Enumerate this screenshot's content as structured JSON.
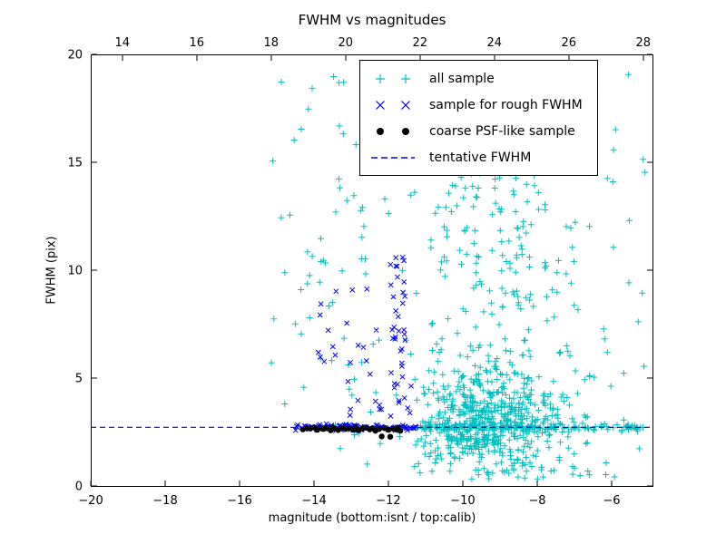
{
  "figure": {
    "title": "FWHM vs magnitudes",
    "xlabel": "magnitude (bottom:isnt / top:calib)",
    "ylabel": "FWHM (pix)"
  },
  "chart_data": {
    "type": "scatter",
    "title": "FWHM vs magnitudes",
    "xlabel": "magnitude (bottom:isnt / top:calib)",
    "ylabel": "FWHM (pix)",
    "xlim": [
      -20,
      -4.9
    ],
    "ylim": [
      0,
      20
    ],
    "grid": false,
    "legend_position": "upper right",
    "x_ticks_bottom": [
      {
        "v": -20,
        "label": "−20"
      },
      {
        "v": -18,
        "label": "−18"
      },
      {
        "v": -16,
        "label": "−16"
      },
      {
        "v": -14,
        "label": "−14"
      },
      {
        "v": -12,
        "label": "−12"
      },
      {
        "v": -10,
        "label": "−10"
      },
      {
        "v": -8,
        "label": "−8"
      },
      {
        "v": -6,
        "label": "−6"
      }
    ],
    "x_ticks_top": [
      {
        "v": 14,
        "label": "14"
      },
      {
        "v": 16,
        "label": "16"
      },
      {
        "v": 18,
        "label": "18"
      },
      {
        "v": 20,
        "label": "20"
      },
      {
        "v": 22,
        "label": "22"
      },
      {
        "v": 24,
        "label": "24"
      },
      {
        "v": 26,
        "label": "26"
      },
      {
        "v": 28,
        "label": "28"
      }
    ],
    "top_axis_offset": 33.15,
    "y_ticks": [
      {
        "v": 0,
        "label": "0"
      },
      {
        "v": 5,
        "label": "5"
      },
      {
        "v": 10,
        "label": "10"
      },
      {
        "v": 15,
        "label": "15"
      },
      {
        "v": 20,
        "label": "20"
      }
    ],
    "tentative_fwhm_y": 2.72,
    "random_seed": 42,
    "series": [
      {
        "name": "all sample",
        "marker": "plus",
        "color": "#00bfbf",
        "clusters": [
          {
            "count": 500,
            "x": {
              "type": "normal",
              "mean": -9.3,
              "sd": 0.95,
              "min": -11.3,
              "max": -5.1
            },
            "y": {
              "type": "normal",
              "mean": 3.1,
              "sd": 1.1,
              "min": 0.6,
              "max": 6.5
            }
          },
          {
            "count": 130,
            "x": {
              "type": "normal",
              "mean": -9.2,
              "sd": 1.05,
              "min": -11.4,
              "max": -5.2
            },
            "y": {
              "type": "uniform",
              "min": 5.5,
              "max": 14.6
            }
          },
          {
            "count": 170,
            "x": {
              "type": "uniform",
              "min": -13.3,
              "max": -5.1
            },
            "y": {
              "type": "uniform",
              "min": 0.5,
              "max": 19.6
            }
          },
          {
            "count": 42,
            "x": {
              "type": "uniform",
              "min": -15.2,
              "max": -13.0
            },
            "y": {
              "type": "uniform",
              "min": 2.6,
              "max": 19.5
            }
          },
          {
            "count": 150,
            "x": {
              "type": "uniform",
              "min": -11.35,
              "max": -5.0
            },
            "y": {
              "type": "normal",
              "mean": 2.72,
              "sd": 0.09,
              "min": 2.5,
              "max": 2.95
            }
          },
          {
            "count": 80,
            "x": {
              "type": "normal",
              "mean": -9.0,
              "sd": 1.4,
              "min": -11.3,
              "max": -5.1
            },
            "y": {
              "type": "uniform",
              "min": 0.3,
              "max": 2.35
            }
          }
        ]
      },
      {
        "name": "sample for rough FWHM",
        "marker": "x",
        "color": "#0000ff",
        "clusters": [
          {
            "count": 120,
            "x": {
              "type": "uniform",
              "min": -14.55,
              "max": -11.25
            },
            "y": {
              "type": "normal",
              "mean": 2.72,
              "sd": 0.07,
              "min": 2.52,
              "max": 2.92
            }
          },
          {
            "count": 40,
            "x": {
              "type": "normal",
              "mean": -11.75,
              "sd": 0.22,
              "min": -12.25,
              "max": -11.35
            },
            "y": {
              "type": "uniform",
              "min": 3.0,
              "max": 10.8
            }
          },
          {
            "count": 26,
            "x": {
              "type": "uniform",
              "min": -13.9,
              "max": -12.15
            },
            "y": {
              "type": "uniform",
              "min": 3.2,
              "max": 9.4
            }
          }
        ]
      },
      {
        "name": "coarse PSF-like sample",
        "marker": "dot",
        "color": "#000000",
        "points": [
          [
            -14.3,
            2.62
          ],
          [
            -14.2,
            2.7
          ],
          [
            -14.1,
            2.66
          ],
          [
            -14.0,
            2.72
          ],
          [
            -13.92,
            2.6
          ],
          [
            -13.85,
            2.68
          ],
          [
            -13.75,
            2.64
          ],
          [
            -13.65,
            2.7
          ],
          [
            -13.55,
            2.58
          ],
          [
            -13.5,
            2.72
          ],
          [
            -13.42,
            2.66
          ],
          [
            -13.35,
            2.6
          ],
          [
            -13.25,
            2.7
          ],
          [
            -13.15,
            2.64
          ],
          [
            -13.05,
            2.68
          ],
          [
            -12.95,
            2.6
          ],
          [
            -12.88,
            2.72
          ],
          [
            -12.8,
            2.58
          ],
          [
            -12.7,
            2.66
          ],
          [
            -12.6,
            2.7
          ],
          [
            -12.5,
            2.62
          ],
          [
            -12.42,
            2.68
          ],
          [
            -12.35,
            2.56
          ],
          [
            -12.25,
            2.64
          ],
          [
            -12.18,
            2.3
          ],
          [
            -12.1,
            2.68
          ],
          [
            -12.0,
            2.6
          ],
          [
            -11.95,
            2.28
          ],
          [
            -11.88,
            2.66
          ],
          [
            -11.8,
            2.62
          ],
          [
            -11.72,
            2.7
          ],
          [
            -11.68,
            2.56
          ]
        ]
      },
      {
        "name": "tentative FWHM",
        "type": "hline",
        "color": "#0000ff",
        "linestyle": "dashed",
        "y": 2.72
      }
    ]
  }
}
